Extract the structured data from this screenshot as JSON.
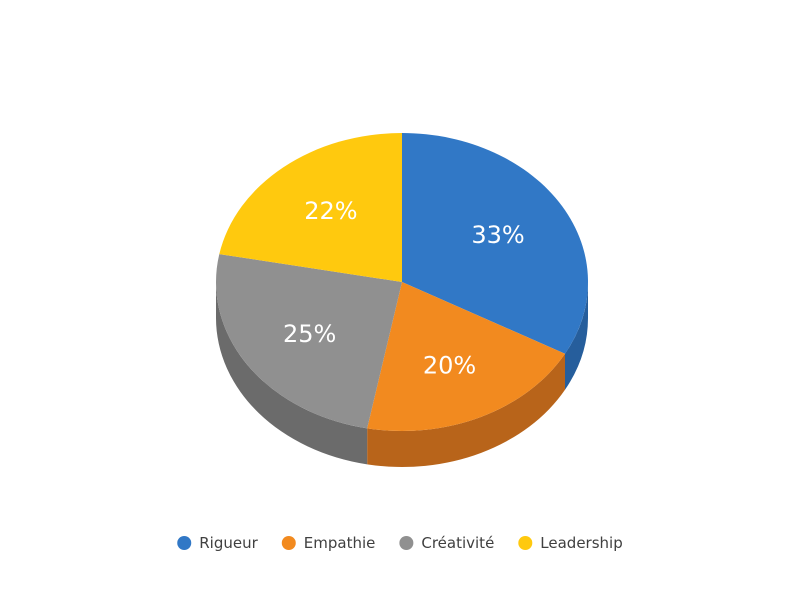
{
  "chart_data": {
    "type": "pie",
    "style": "3d",
    "categories": [
      "Rigueur",
      "Empathie",
      "Créativité",
      "Leadership"
    ],
    "values": [
      33,
      20,
      25,
      22
    ],
    "labels": [
      "33%",
      "20%",
      "25%",
      "22%"
    ],
    "colors": [
      "#3178c6",
      "#f28a1f",
      "#909090",
      "#ffc90e"
    ],
    "side_colors": [
      "#265e9c",
      "#b8641a",
      "#6b6b6b",
      "#c79a00"
    ],
    "legend_placement": "bottom"
  }
}
